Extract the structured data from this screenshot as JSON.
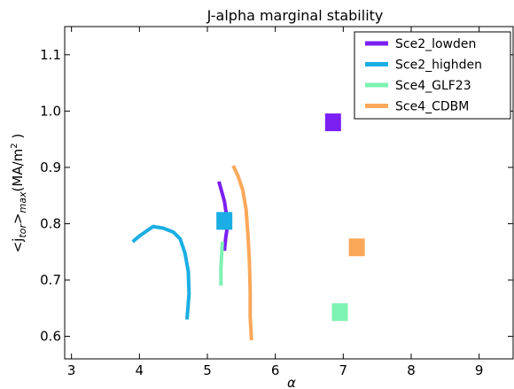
{
  "chart_data": {
    "type": "line",
    "title": "J-alpha marginal stability",
    "xlabel": "α",
    "ylabel": {
      "main": "<j",
      "sub": "tor",
      "close": ">",
      "sub2": "max",
      "units": "(MA/m",
      "sup": "2",
      "units_close": " )"
    },
    "xlim": [
      2.9,
      9.5
    ],
    "ylim": [
      0.56,
      1.15
    ],
    "xticks": [
      "3",
      "4",
      "5",
      "6",
      "7",
      "8",
      "9"
    ],
    "yticks": [
      "0.6",
      "0.7",
      "0.8",
      "0.9",
      "1.0",
      "1.1"
    ],
    "grid": false,
    "legend_position": "top-right",
    "series": [
      {
        "name": "Sce2_lowden",
        "color": "#7b1ff2",
        "points": [
          [
            5.17,
            0.875
          ],
          [
            5.2,
            0.862
          ],
          [
            5.25,
            0.84
          ],
          [
            5.3,
            0.8
          ],
          [
            5.27,
            0.775
          ],
          [
            5.25,
            0.752
          ]
        ],
        "marker": [
          6.85,
          0.98
        ]
      },
      {
        "name": "Sce2_highden",
        "color": "#1aaee4",
        "points": [
          [
            3.9,
            0.768
          ],
          [
            4.0,
            0.778
          ],
          [
            4.2,
            0.795
          ],
          [
            4.35,
            0.792
          ],
          [
            4.5,
            0.785
          ],
          [
            4.6,
            0.773
          ],
          [
            4.67,
            0.748
          ],
          [
            4.72,
            0.715
          ],
          [
            4.73,
            0.675
          ],
          [
            4.7,
            0.63
          ]
        ],
        "marker": [
          5.25,
          0.805
        ]
      },
      {
        "name": "Sce4_GLF23",
        "color": "#7df2b2",
        "points": [
          [
            5.2,
            0.69
          ],
          [
            5.2,
            0.72
          ],
          [
            5.21,
            0.745
          ],
          [
            5.22,
            0.768
          ]
        ],
        "marker": [
          6.95,
          0.643
        ]
      },
      {
        "name": "Sce4_CDBM",
        "color": "#fca85a",
        "points": [
          [
            5.38,
            0.903
          ],
          [
            5.45,
            0.885
          ],
          [
            5.52,
            0.86
          ],
          [
            5.57,
            0.825
          ],
          [
            5.6,
            0.775
          ],
          [
            5.62,
            0.73
          ],
          [
            5.63,
            0.68
          ],
          [
            5.63,
            0.635
          ],
          [
            5.65,
            0.593
          ]
        ],
        "marker": [
          7.2,
          0.758
        ]
      }
    ]
  }
}
